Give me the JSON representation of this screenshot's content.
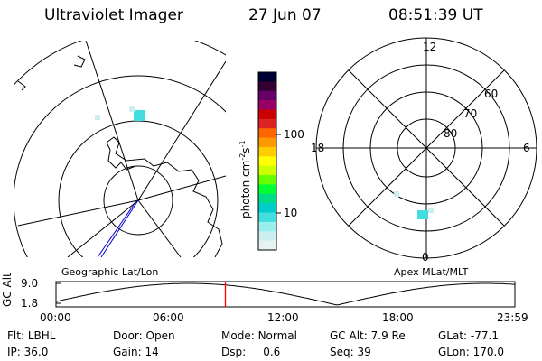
{
  "header": {
    "title": "Ultraviolet Imager",
    "date": "27 Jun 07",
    "time": "08:51:39 UT"
  },
  "colorbar": {
    "label": "photon cm",
    "label_exp1": "-2",
    "label_mid": "s",
    "label_exp2": "-1",
    "ticks": [
      "100",
      "10"
    ],
    "colors": [
      "#000033",
      "#330033",
      "#660066",
      "#990066",
      "#cc0000",
      "#dd2222",
      "#ff6600",
      "#ff9900",
      "#ffcc00",
      "#ffff00",
      "#ccff00",
      "#66ff00",
      "#00ff33",
      "#00dd88",
      "#00cccc",
      "#44dddd",
      "#99eeee",
      "#cceeee",
      "#e6f2f2"
    ]
  },
  "geo_map": {
    "label": "Geographic Lat/Lon"
  },
  "polar_plot": {
    "label": "Apex MLat/MLT",
    "mlt_labels": {
      "top": "12",
      "left": "18",
      "right": "6",
      "bottom": "0"
    },
    "lat_labels": [
      "60",
      "70",
      "80"
    ]
  },
  "altitude_plot": {
    "ylabel": "GC Alt",
    "yticks": [
      "9.0",
      "1.8"
    ],
    "xticks": [
      "00:00",
      "06:00",
      "12:00",
      "18:00",
      "23:59"
    ],
    "marker_color": "#ff0000",
    "current_time_hours": 8.86
  },
  "footer": {
    "row1": [
      {
        "label": "Flt:",
        "value": "LBHL"
      },
      {
        "label": "Door:",
        "value": "Open"
      },
      {
        "label": "Mode:",
        "value": "Normal"
      },
      {
        "label": "GC Alt:",
        "value": "7.9 Re"
      },
      {
        "label": "GLat:",
        "value": "-77.1"
      }
    ],
    "row2": [
      {
        "label": "IP:",
        "value": "36.0"
      },
      {
        "label": "Gain:",
        "value": "14"
      },
      {
        "label": "Dsp:",
        "value": "0.6"
      },
      {
        "label": "Seq:",
        "value": "39"
      },
      {
        "label": "GLon:",
        "value": "170.0"
      }
    ]
  }
}
